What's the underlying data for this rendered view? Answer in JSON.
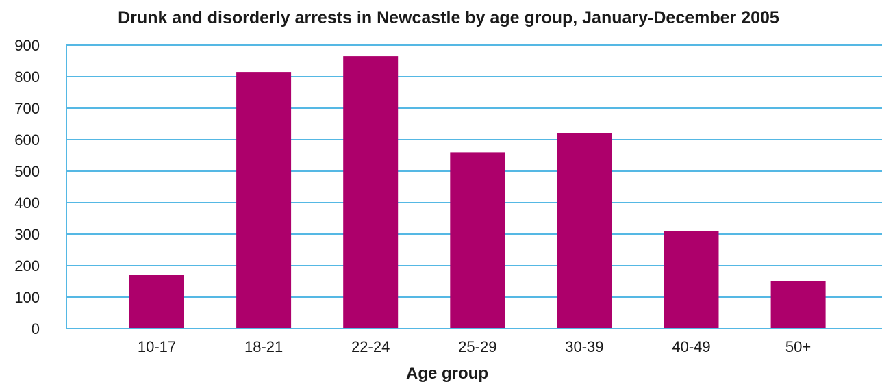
{
  "chart_data": {
    "type": "bar",
    "title": "Drunk and disorderly arrests in Newcastle by age group, January-December 2005",
    "xlabel": "Age group",
    "ylabel": "",
    "categories": [
      "10-17",
      "18-21",
      "22-24",
      "25-29",
      "30-39",
      "40-49",
      "50+"
    ],
    "values": [
      170,
      815,
      865,
      560,
      620,
      310,
      150
    ],
    "ylim": [
      0,
      900
    ],
    "yticks": [
      0,
      100,
      200,
      300,
      400,
      500,
      600,
      700,
      800,
      900
    ],
    "grid": true,
    "legend": "none",
    "colors": {
      "bar": "#ad006b",
      "grid": "#55b8e4",
      "axis": "#55b8e4",
      "text": "#1a1a1a"
    }
  }
}
